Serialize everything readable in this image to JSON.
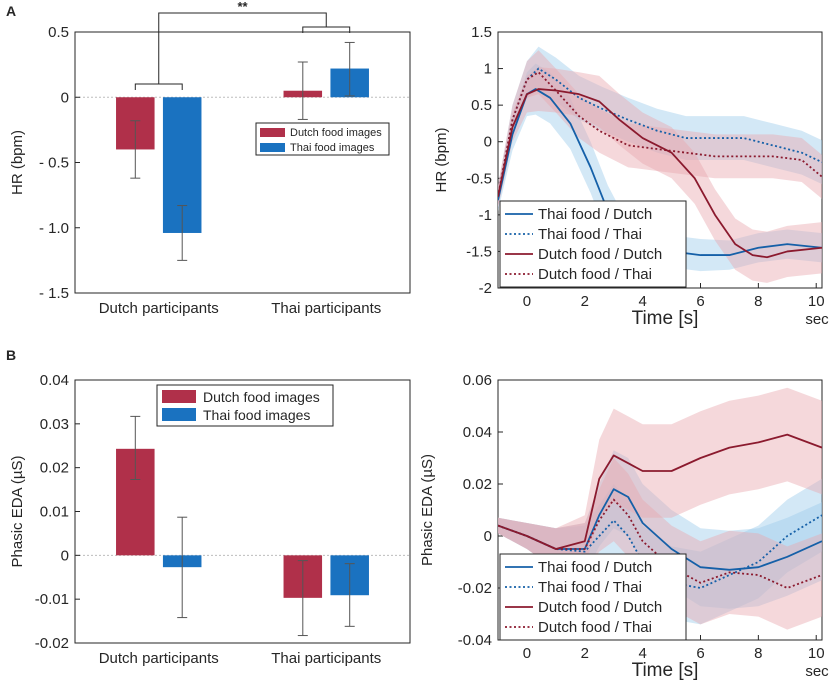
{
  "panel_labels": {
    "a": "A",
    "b": "B"
  },
  "colors": {
    "dutch": "#b0304a",
    "thai": "#1a72c0",
    "dutch_dark": "#8b1a2e",
    "thai_dark": "#1560a8",
    "dutch_band": "#e8a8b0",
    "thai_band": "#9ecbea"
  },
  "chart_data": [
    {
      "id": "hr_bar",
      "type": "bar",
      "ylabel": "HR (bpm)",
      "ylim": [
        -1.5,
        0.5
      ],
      "yticks": [
        0.5,
        0,
        -0.5,
        -1.0,
        -1.5
      ],
      "ytick_labels": [
        "0.5",
        "0",
        "- 0.5",
        "- 1.0",
        "- 1.5"
      ],
      "categories": [
        "Dutch participants",
        "Thai participants"
      ],
      "series": [
        {
          "name": "Dutch food images",
          "color": "dutch",
          "values": [
            -0.4,
            0.05
          ],
          "err_low": [
            -0.62,
            -0.17
          ],
          "err_high": [
            -0.18,
            0.27
          ]
        },
        {
          "name": "Thai food images",
          "color": "thai",
          "values": [
            -1.04,
            0.22
          ],
          "err_low": [
            -1.25,
            0.01
          ],
          "err_high": [
            -0.83,
            0.42
          ]
        }
      ],
      "significance": "**",
      "legend_position": "right-middle"
    },
    {
      "id": "hr_line",
      "type": "line",
      "ylabel": "HR (bpm)",
      "xlabel": "Time [s]",
      "x_unit_label": "sec",
      "xlim": [
        -1,
        10.2
      ],
      "ylim": [
        -2,
        1.5
      ],
      "xticks": [
        0,
        2,
        4,
        6,
        8,
        10
      ],
      "yticks": [
        1.5,
        1,
        0.5,
        0,
        -0.5,
        -1,
        -1.5,
        -2
      ],
      "ytick_labels": [
        "1.5",
        "1",
        "0.5",
        "0",
        "-0.5",
        "-1",
        "-1.5",
        "-2"
      ],
      "series": [
        {
          "name": "Thai food / Dutch",
          "color": "thai",
          "dash": false,
          "x": [
            -1,
            -0.5,
            0,
            0.3,
            0.8,
            1.5,
            2.2,
            2.8,
            3.4,
            4,
            5,
            6,
            7,
            8,
            9,
            10.2
          ],
          "y": [
            -0.8,
            0.1,
            0.65,
            0.72,
            0.6,
            0.25,
            -0.35,
            -0.95,
            -1.35,
            -1.45,
            -1.5,
            -1.55,
            -1.55,
            -1.45,
            -1.4,
            -1.45
          ],
          "band": [
            0.15,
            0.22,
            0.3,
            0.35,
            0.35,
            0.35,
            0.35,
            0.35,
            0.3,
            0.25,
            0.22,
            0.22,
            0.2,
            0.2,
            0.2,
            0.2
          ]
        },
        {
          "name": "Thai food / Thai",
          "color": "thai",
          "dash": true,
          "x": [
            -1,
            -0.5,
            0,
            0.4,
            1,
            1.8,
            2.6,
            3.5,
            4.5,
            5.5,
            6.5,
            7.5,
            8.5,
            9.5,
            10.2
          ],
          "y": [
            -0.75,
            0.3,
            0.85,
            1.0,
            0.85,
            0.6,
            0.45,
            0.3,
            0.15,
            0.05,
            0.05,
            0.05,
            -0.05,
            -0.15,
            -0.28
          ],
          "band": [
            0.15,
            0.2,
            0.25,
            0.3,
            0.3,
            0.3,
            0.3,
            0.3,
            0.3,
            0.3,
            0.3,
            0.3,
            0.3,
            0.3,
            0.3
          ]
        },
        {
          "name": "Dutch food / Dutch",
          "color": "dutch",
          "dash": false,
          "x": [
            -1,
            -0.5,
            0,
            0.4,
            1,
            1.8,
            2.5,
            3.2,
            4,
            5,
            5.8,
            6.5,
            7.2,
            7.8,
            8.3,
            9,
            10.2
          ],
          "y": [
            -0.75,
            0.2,
            0.65,
            0.72,
            0.7,
            0.65,
            0.55,
            0.3,
            0.05,
            -0.15,
            -0.5,
            -1.0,
            -1.4,
            -1.55,
            -1.58,
            -1.5,
            -1.45
          ],
          "band": [
            0.15,
            0.2,
            0.25,
            0.3,
            0.3,
            0.3,
            0.35,
            0.35,
            0.35,
            0.35,
            0.35,
            0.35,
            0.35,
            0.35,
            0.35,
            0.35,
            0.35
          ]
        },
        {
          "name": "Dutch food / Thai",
          "color": "dutch",
          "dash": true,
          "x": [
            -1,
            -0.5,
            0,
            0.4,
            1,
            1.8,
            2.5,
            3.5,
            4.5,
            5.5,
            6.5,
            7.5,
            8.5,
            9.5,
            10.2
          ],
          "y": [
            -0.75,
            0.3,
            0.85,
            0.95,
            0.7,
            0.35,
            0.15,
            -0.05,
            -0.1,
            -0.15,
            -0.2,
            -0.2,
            -0.2,
            -0.25,
            -0.48
          ],
          "band": [
            0.15,
            0.2,
            0.25,
            0.3,
            0.3,
            0.3,
            0.3,
            0.3,
            0.3,
            0.3,
            0.3,
            0.3,
            0.3,
            0.3,
            0.3
          ]
        }
      ],
      "legend_position": "bottom-left"
    },
    {
      "id": "eda_bar",
      "type": "bar",
      "ylabel": "Phasic EDA (µS)",
      "ylim": [
        -0.02,
        0.04
      ],
      "yticks": [
        0.04,
        0.03,
        0.02,
        0.01,
        0,
        -0.01,
        -0.02
      ],
      "ytick_labels": [
        "0.04",
        "0.03",
        "0.02",
        "0.01",
        "0",
        "-0.01",
        "-0.02"
      ],
      "categories": [
        "Dutch participants",
        "Thai participants"
      ],
      "series": [
        {
          "name": "Dutch food images",
          "color": "dutch",
          "values": [
            0.0243,
            -0.0097
          ],
          "err_low": [
            0.0173,
            -0.0183
          ],
          "err_high": [
            0.0317,
            -0.0012
          ]
        },
        {
          "name": "Thai food images",
          "color": "thai",
          "values": [
            -0.0027,
            -0.0091
          ],
          "err_low": [
            -0.0142,
            -0.0162
          ],
          "err_high": [
            0.0087,
            -0.0019
          ]
        }
      ],
      "legend_position": "top-middle"
    },
    {
      "id": "eda_line",
      "type": "line",
      "ylabel": "Phasic EDA (µS)",
      "xlabel": "Time [s]",
      "x_unit_label": "sec",
      "xlim": [
        -1,
        10.2
      ],
      "ylim": [
        -0.04,
        0.06
      ],
      "xticks": [
        0,
        2,
        4,
        6,
        8,
        10
      ],
      "yticks": [
        0.06,
        0.04,
        0.02,
        0,
        -0.02,
        -0.04
      ],
      "ytick_labels": [
        "0.06",
        "0.04",
        "0.02",
        "0",
        "-0.02",
        "-0.04"
      ],
      "series": [
        {
          "name": "Thai food / Dutch",
          "color": "thai",
          "dash": false,
          "x": [
            -1,
            0,
            1,
            2,
            2.5,
            3,
            3.5,
            4,
            5,
            6,
            7,
            8,
            9,
            10.2
          ],
          "y": [
            0.004,
            0.0,
            -0.005,
            -0.005,
            0.008,
            0.018,
            0.015,
            0.005,
            -0.005,
            -0.012,
            -0.013,
            -0.012,
            -0.008,
            -0.002
          ],
          "band": [
            0.003,
            0.005,
            0.008,
            0.01,
            0.012,
            0.015,
            0.015,
            0.015,
            0.015,
            0.015,
            0.015,
            0.015,
            0.015,
            0.015
          ]
        },
        {
          "name": "Thai food / Thai",
          "color": "thai",
          "dash": true,
          "x": [
            -1,
            0,
            1,
            2,
            2.5,
            3,
            3.5,
            4,
            5,
            6,
            7,
            8,
            9,
            10.2
          ],
          "y": [
            0.004,
            0.0,
            -0.005,
            -0.006,
            0.0,
            0.006,
            0.0,
            -0.01,
            -0.018,
            -0.02,
            -0.015,
            -0.01,
            0.0,
            0.008
          ],
          "band": [
            0.003,
            0.005,
            0.008,
            0.01,
            0.012,
            0.014,
            0.014,
            0.014,
            0.014,
            0.014,
            0.014,
            0.014,
            0.014,
            0.014
          ]
        },
        {
          "name": "Dutch food / Dutch",
          "color": "dutch",
          "dash": false,
          "x": [
            -1,
            0,
            1,
            2,
            2.5,
            3,
            3.5,
            4,
            5,
            6,
            7,
            8,
            9,
            10.2
          ],
          "y": [
            0.004,
            0.0,
            -0.005,
            -0.002,
            0.022,
            0.031,
            0.028,
            0.025,
            0.025,
            0.03,
            0.034,
            0.036,
            0.039,
            0.034
          ],
          "band": [
            0.003,
            0.005,
            0.008,
            0.01,
            0.015,
            0.018,
            0.018,
            0.018,
            0.018,
            0.018,
            0.018,
            0.018,
            0.018,
            0.018
          ]
        },
        {
          "name": "Dutch food / Thai",
          "color": "dutch",
          "dash": true,
          "x": [
            -1,
            0,
            1,
            2,
            2.5,
            3,
            3.5,
            4,
            5,
            6,
            7,
            8,
            9,
            10.2
          ],
          "y": [
            0.004,
            0.0,
            -0.005,
            -0.005,
            0.006,
            0.014,
            0.008,
            -0.002,
            -0.012,
            -0.018,
            -0.014,
            -0.015,
            -0.02,
            -0.015
          ],
          "band": [
            0.003,
            0.005,
            0.008,
            0.01,
            0.012,
            0.016,
            0.016,
            0.016,
            0.016,
            0.016,
            0.016,
            0.016,
            0.016,
            0.016
          ]
        }
      ],
      "legend_position": "bottom-left"
    }
  ]
}
